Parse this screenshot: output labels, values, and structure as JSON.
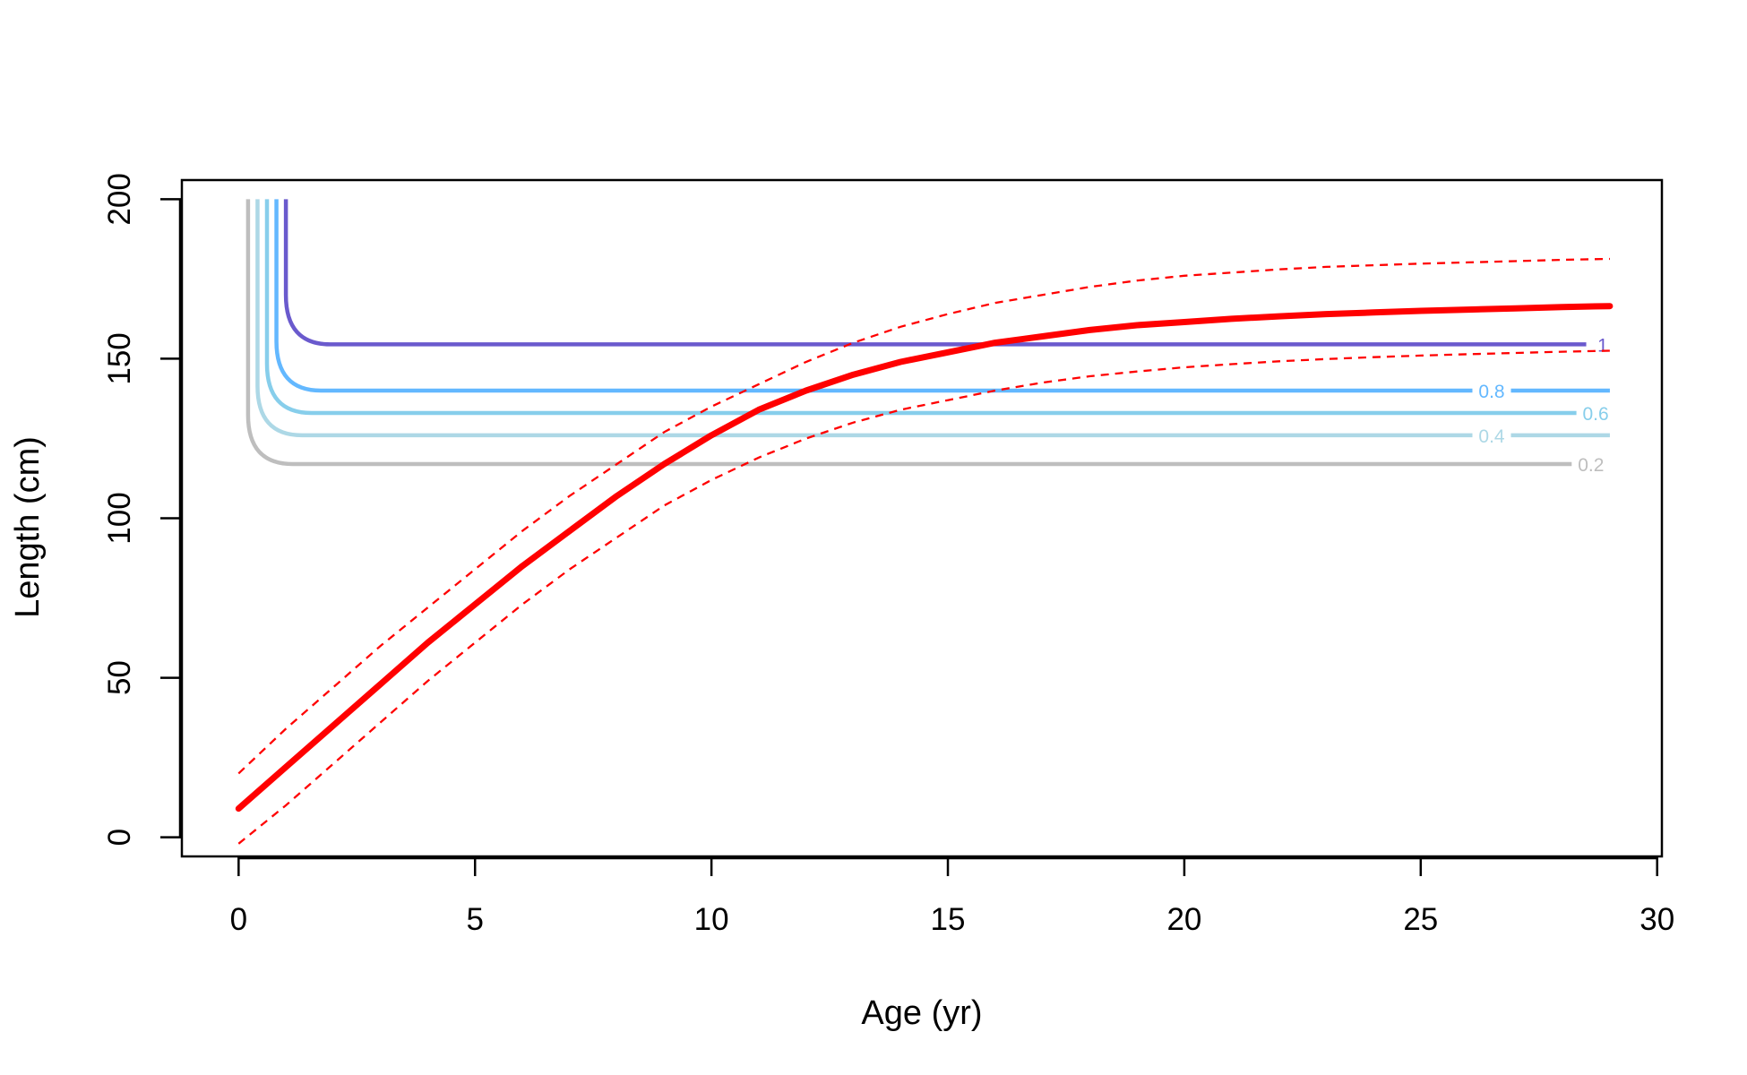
{
  "chart_data": {
    "type": "line",
    "title": "",
    "xlabel": "Age (yr)",
    "ylabel": "Length (cm)",
    "xlim": [
      -1.2,
      30.1
    ],
    "ylim": [
      -6,
      206
    ],
    "x_ticks": [
      0,
      5,
      10,
      15,
      20,
      25,
      30
    ],
    "y_ticks": [
      0,
      50,
      100,
      150,
      200
    ],
    "x_tick_labels": [
      "0",
      "5",
      "10",
      "15",
      "20",
      "25",
      "30"
    ],
    "y_tick_labels": [
      "0",
      "50",
      "100",
      "150",
      "200"
    ],
    "grid": false,
    "growth_curve": {
      "color": "#ff0000",
      "x": [
        0,
        1,
        2,
        3,
        4,
        5,
        6,
        7,
        8,
        9,
        10,
        11,
        12,
        13,
        14,
        15,
        16,
        17,
        18,
        19,
        20,
        21,
        22,
        23,
        24,
        25,
        26,
        27,
        28,
        29
      ],
      "mean": [
        9,
        22,
        35,
        48,
        61,
        73,
        85,
        96,
        107,
        117,
        126,
        134,
        140,
        145,
        149,
        152,
        155,
        157,
        159,
        160.5,
        161.5,
        162.5,
        163.3,
        164,
        164.5,
        165,
        165.4,
        165.8,
        166.2,
        166.5
      ],
      "upper": [
        20,
        34,
        47,
        60,
        72,
        84,
        96,
        107,
        117,
        127,
        135,
        142,
        149,
        155,
        160,
        164,
        167.5,
        170,
        172.5,
        174.5,
        176,
        177,
        178,
        178.8,
        179.3,
        179.8,
        180.2,
        180.6,
        181,
        181.3
      ],
      "lower": [
        -2,
        10,
        23,
        36,
        49,
        61,
        73,
        84,
        94,
        104,
        112,
        119,
        125,
        130,
        134,
        137,
        140,
        142.5,
        144.5,
        146,
        147.3,
        148.3,
        149.2,
        149.9,
        150.5,
        151,
        151.4,
        151.8,
        152.2,
        152.5
      ]
    },
    "contours": [
      {
        "label": "0.2",
        "color": "#bebebe",
        "level": 117,
        "x_start": 0.2,
        "x_end": 28.2,
        "label_x": 28.6
      },
      {
        "label": "0.4",
        "color": "#add8e6",
        "level": 126,
        "x_start": 0.4,
        "x_end": 29,
        "label_x": 26.5
      },
      {
        "label": "0.6",
        "color": "#87ceeb",
        "level": 133,
        "x_start": 0.6,
        "x_end": 28.3,
        "label_x": 28.7
      },
      {
        "label": "0.8",
        "color": "#63b8ff",
        "level": 140,
        "x_start": 0.8,
        "x_end": 29,
        "label_x": 26.5
      },
      {
        "label": "1",
        "color": "#6a5acd",
        "level": 154.5,
        "x_start": 1.0,
        "x_end": 28.5,
        "label_x": 28.85
      }
    ],
    "contour_top": 200
  }
}
